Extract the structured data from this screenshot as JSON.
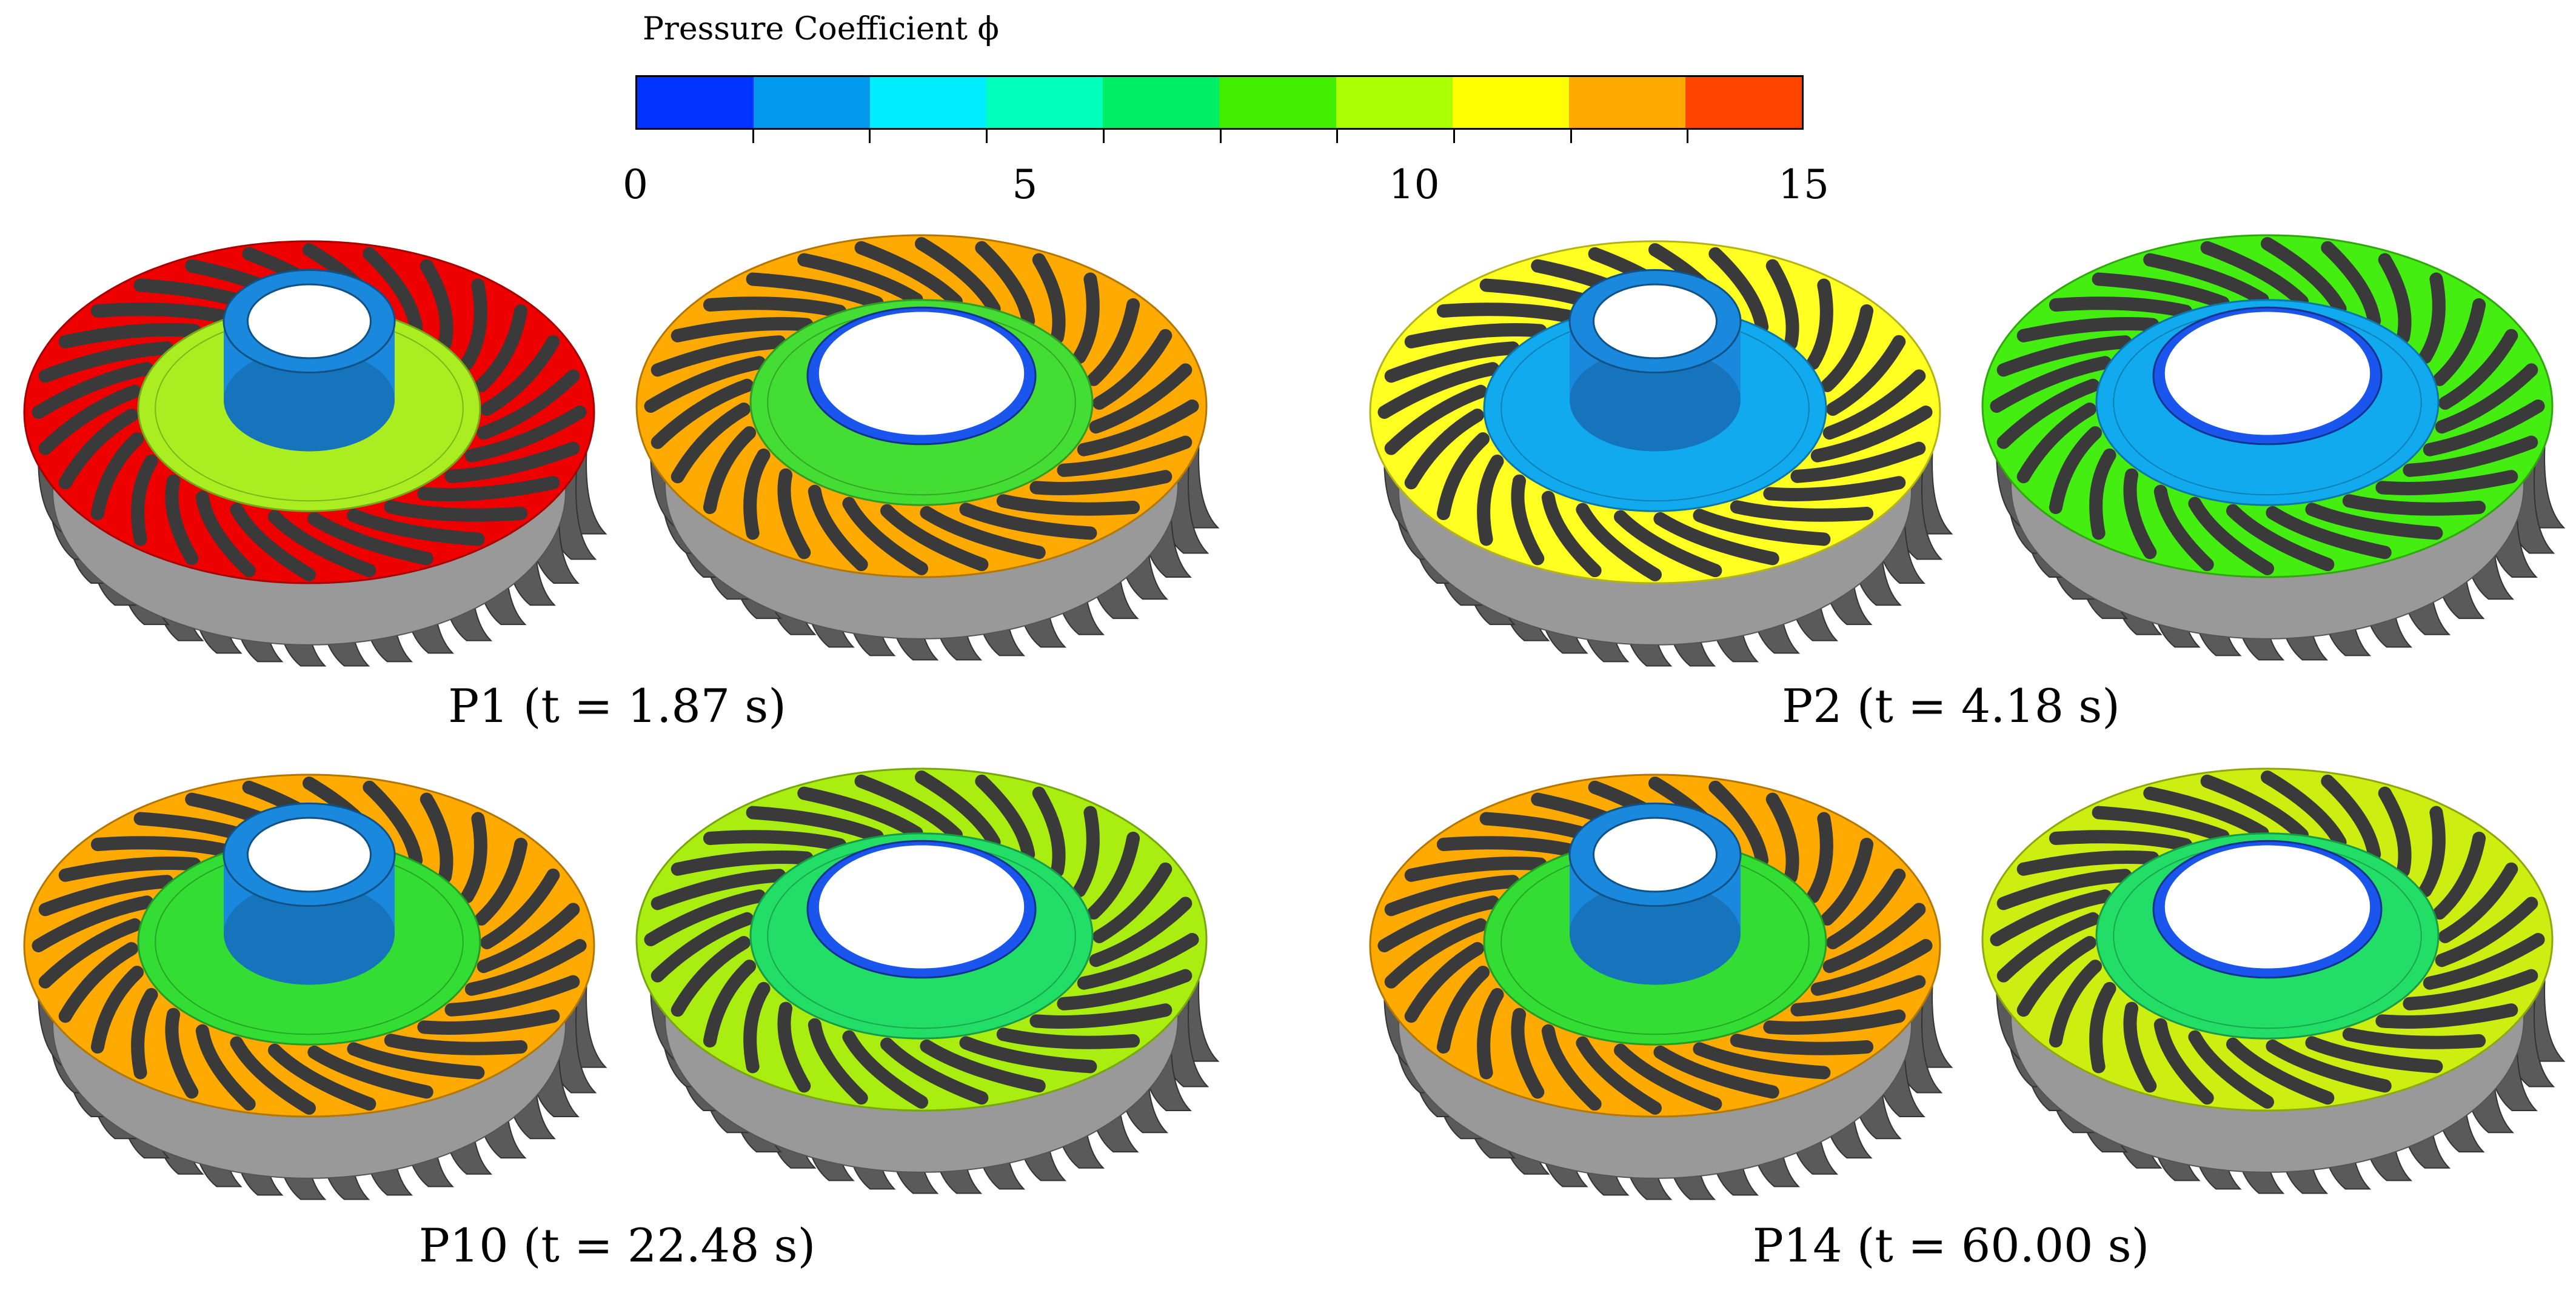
{
  "legend": {
    "title": "Pressure Coefficient ϕ",
    "colors": [
      "#0033ff",
      "#0099ee",
      "#00eeff",
      "#00ffbb",
      "#00ee66",
      "#44ee00",
      "#aaff00",
      "#ffff00",
      "#ffaa00",
      "#ff4400"
    ],
    "ticks": [
      {
        "value": 0,
        "label": "0"
      },
      {
        "value": 5,
        "label": "5"
      },
      {
        "value": 10,
        "label": "10"
      },
      {
        "value": 15,
        "label": "15"
      }
    ],
    "range": [
      0,
      15
    ]
  },
  "panels": [
    {
      "caption": "P1 (t = 1.87 s)",
      "left": {
        "blade": "#ee0000",
        "shroud": "#aaee22",
        "hub": "#1a88dd"
      },
      "right": {
        "blade": "#ffaa00",
        "shroud": "#44dd33",
        "hub": "#1a55ee"
      }
    },
    {
      "caption": "P2 (t = 4.18 s)",
      "left": {
        "blade": "#ffff22",
        "shroud": "#11aaee",
        "hub": "#1a88dd"
      },
      "right": {
        "blade": "#44ee11",
        "shroud": "#11aaee",
        "hub": "#1a55ee"
      }
    },
    {
      "caption": "P10 (t = 22.48 s)",
      "left": {
        "blade": "#ffaa00",
        "shroud": "#33dd33",
        "hub": "#1a88dd"
      },
      "right": {
        "blade": "#aaee11",
        "shroud": "#22dd66",
        "hub": "#1a55ee"
      }
    },
    {
      "caption": "P14 (t = 60.00 s)",
      "left": {
        "blade": "#ffaa00",
        "shroud": "#33dd33",
        "hub": "#1a88dd"
      },
      "right": {
        "blade": "#ccee11",
        "shroud": "#22dd66",
        "hub": "#1a55ee"
      }
    }
  ]
}
